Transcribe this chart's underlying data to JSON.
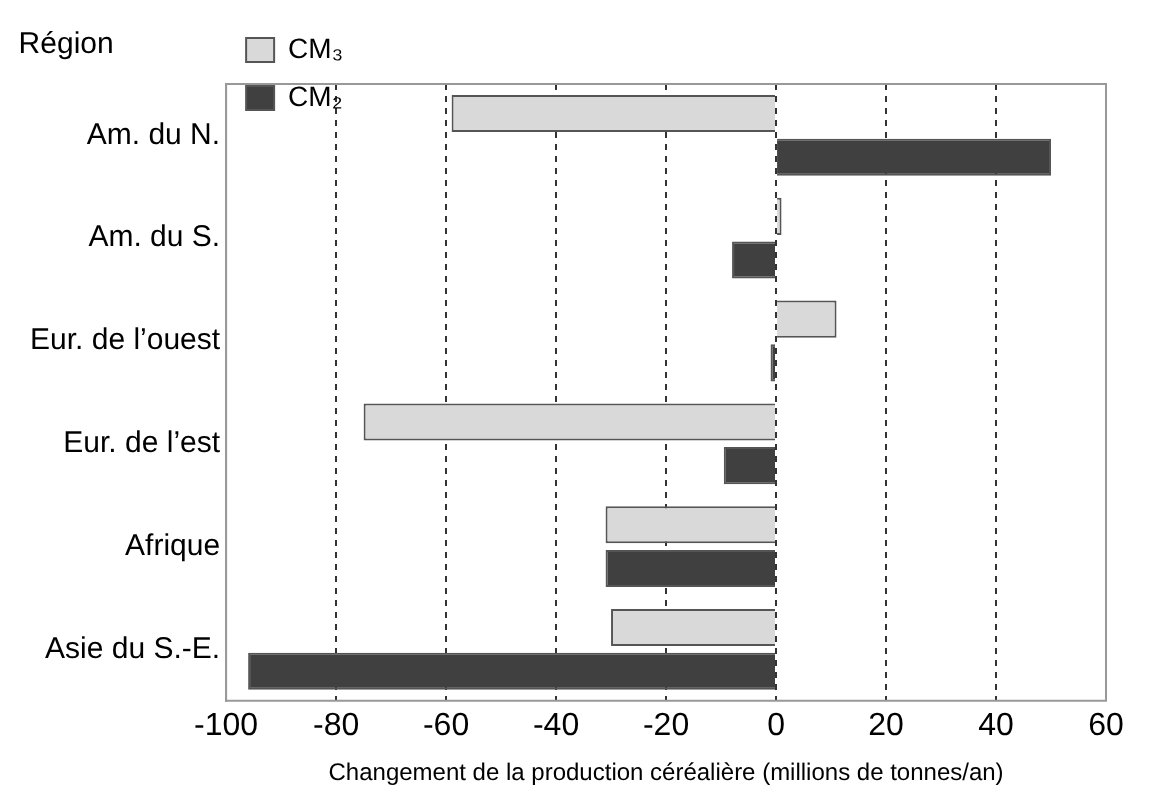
{
  "chart_data": {
    "type": "bar",
    "orientation": "horizontal",
    "ylabel": "Région",
    "xlabel": "Changement de la production céréalière (millions de tonnes/an)",
    "categories": [
      "Am. du N.",
      "Am. du S.",
      "Eur. de l’ouest",
      "Eur. de l’est",
      "Afrique",
      "Asie du S.-E."
    ],
    "series": [
      {
        "name": "CM₃",
        "color": "#d9d9d9",
        "values": [
          -59,
          1,
          11,
          -75,
          -31,
          -30
        ]
      },
      {
        "name": "CM₂",
        "color": "#404040",
        "values": [
          50,
          -8,
          -1,
          -9.5,
          -31,
          -96
        ]
      }
    ],
    "xlim": [
      -100,
      60
    ],
    "xticks": [
      -100,
      -80,
      -60,
      -40,
      -20,
      0,
      20,
      40,
      60
    ],
    "grid": "x",
    "legend": "top left"
  }
}
